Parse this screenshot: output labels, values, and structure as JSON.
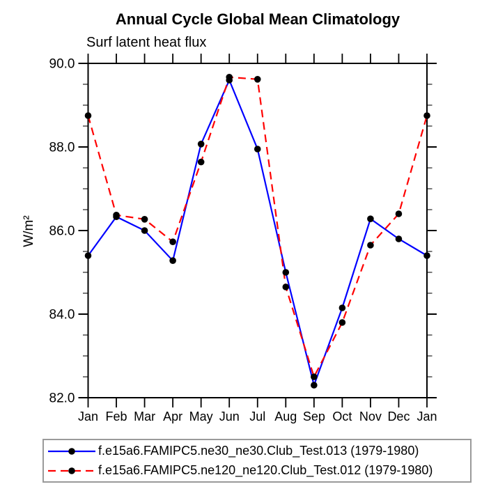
{
  "chart_data": {
    "type": "line",
    "title": "Annual Cycle Global Mean Climatology",
    "subtitle": "Surf latent heat flux",
    "ylabel": "W/m²",
    "xlabel": "",
    "categories": [
      "Jan",
      "Feb",
      "Mar",
      "Apr",
      "May",
      "Jun",
      "Jul",
      "Aug",
      "Sep",
      "Oct",
      "Nov",
      "Dec",
      "Jan"
    ],
    "ylim": [
      82.0,
      90.0
    ],
    "ytick_major": [
      82.0,
      84.0,
      86.0,
      88.0,
      90.0
    ],
    "ytick_labels": [
      "82.0",
      "84.0",
      "86.0",
      "88.0",
      "90.0"
    ],
    "ytick_minor_step": 0.5,
    "grid": false,
    "legend_position": "bottom",
    "axis_color": "#000000",
    "marker_shape": "circle",
    "series": [
      {
        "name": "f.e15a6.FAMIPC5.ne30_ne30.Club_Test.013 (1979-1980)",
        "color": "#0000ff",
        "line_style": "solid",
        "marker_color": "#000000",
        "values": [
          85.4,
          86.33,
          86.0,
          85.28,
          88.07,
          89.6,
          87.95,
          85.0,
          82.3,
          84.15,
          86.28,
          85.8,
          85.4
        ]
      },
      {
        "name": "f.e15a6.FAMIPC5.ne120_ne120.Club_Test.012 (1979-1980)",
        "color": "#ff0000",
        "line_style": "dashed",
        "marker_color": "#000000",
        "values": [
          88.75,
          86.37,
          86.27,
          85.73,
          87.64,
          89.67,
          89.62,
          84.65,
          82.5,
          83.8,
          85.65,
          86.4,
          88.75
        ]
      }
    ]
  }
}
